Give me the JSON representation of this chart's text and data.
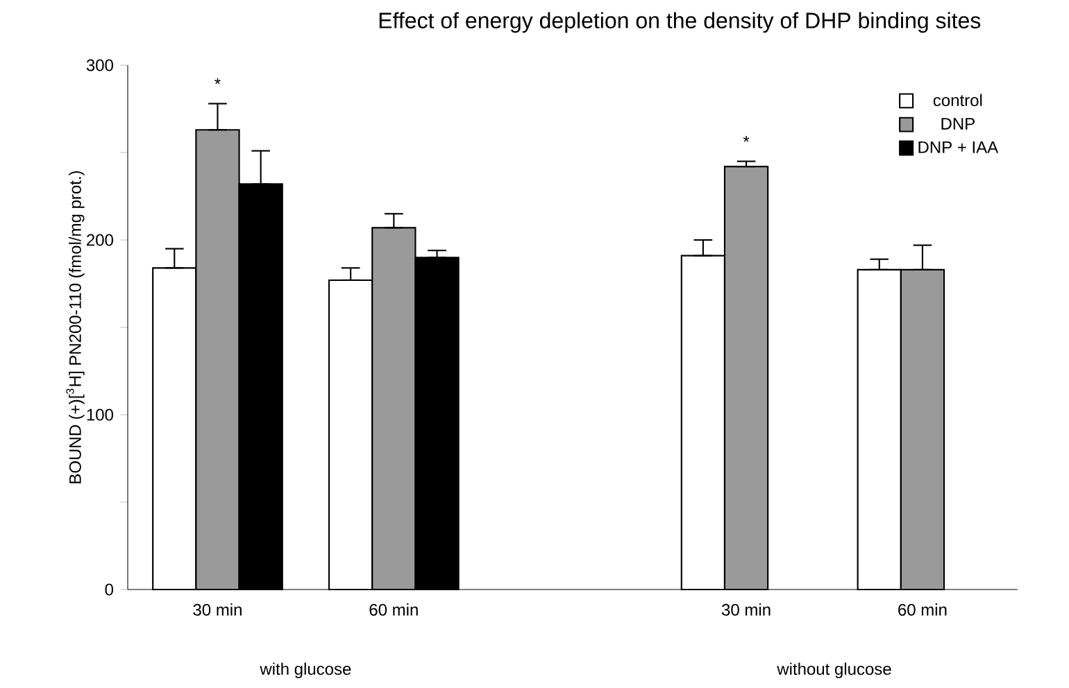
{
  "chart_data": {
    "type": "bar",
    "title": "Effect of energy depletion on the density of DHP binding sites",
    "ylabel": "BOUND (+)[$^{3}$H] PN200-110 (fmol/mg prot.)",
    "categories": [
      "30  min",
      "60  min",
      null,
      "30  min",
      "60  min"
    ],
    "series": [
      {
        "name": "control",
        "color": "#ffffff",
        "values": [
          184,
          177,
          null,
          191,
          183
        ],
        "errors": [
          [
            184,
            195
          ],
          [
            177,
            184
          ],
          null,
          [
            191,
            200
          ],
          [
            183,
            189
          ]
        ]
      },
      {
        "name": "DNP",
        "color": "#9a9a9a",
        "values": [
          263,
          207,
          null,
          242,
          183
        ],
        "errors": [
          [
            263,
            278
          ],
          [
            207,
            215
          ],
          null,
          [
            242,
            245
          ],
          [
            183,
            197
          ]
        ],
        "value_labels": [
          "*",
          null,
          null,
          "*",
          null
        ]
      },
      {
        "name": "DNP + IAA",
        "color": "#000000",
        "values": [
          232,
          190,
          null,
          null,
          null
        ],
        "errors": [
          [
            232,
            251
          ],
          [
            190,
            194
          ],
          null,
          null,
          null
        ]
      }
    ],
    "ylim": [
      0,
      300
    ],
    "yticks": [
      0,
      {
        "value": 50,
        "label": null
      },
      100,
      {
        "value": 150,
        "label": null
      },
      200,
      {
        "value": 250,
        "label": null
      },
      300
    ],
    "legend": "top right",
    "annotations": [
      "with glucose",
      "without glucose"
    ]
  }
}
